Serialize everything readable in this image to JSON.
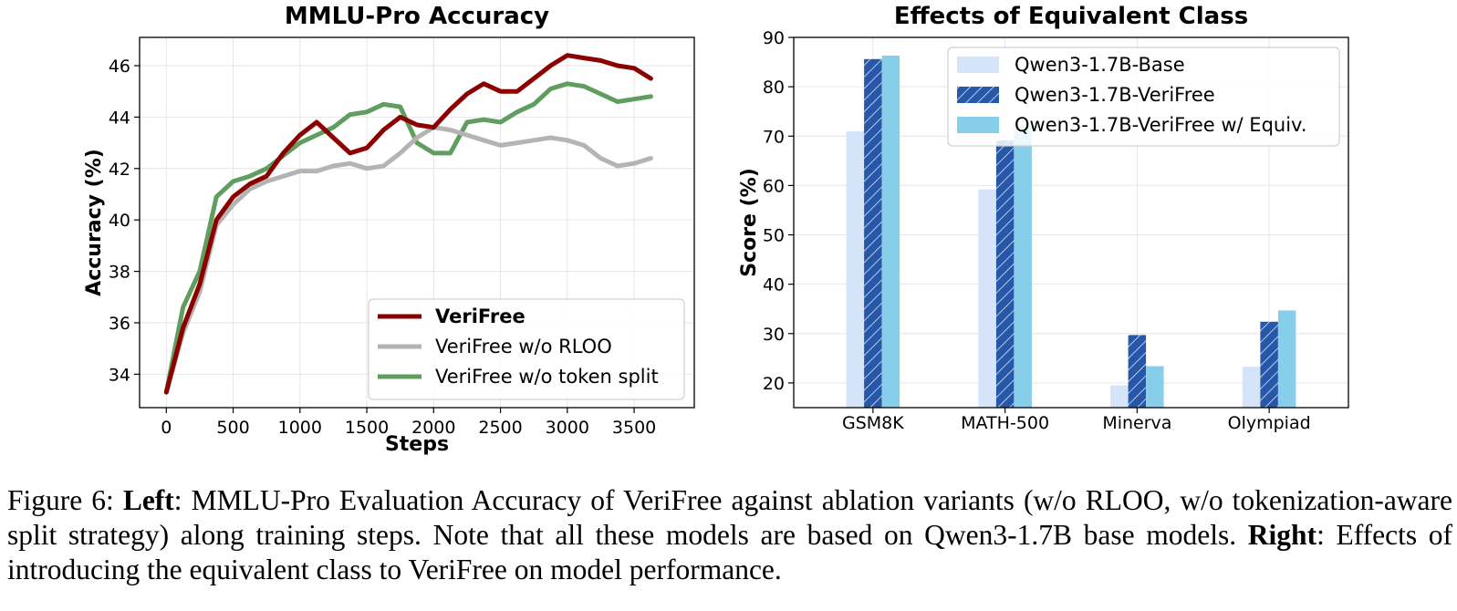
{
  "chart_data": [
    {
      "type": "line",
      "title": "MMLU-Pro Accuracy",
      "xlabel": "Steps",
      "ylabel": "Accuracy (%)",
      "xlim": [
        -200,
        3950
      ],
      "ylim": [
        32.7,
        47.1
      ],
      "xticks": [
        0,
        500,
        1000,
        1500,
        2000,
        2500,
        3000,
        3500
      ],
      "yticks": [
        34,
        36,
        38,
        40,
        42,
        44,
        46
      ],
      "grid": true,
      "legend_position": "lower-right",
      "series": [
        {
          "name": "VeriFree",
          "color": "#8b0000",
          "bold_label": true,
          "x": [
            0,
            125,
            250,
            375,
            500,
            625,
            750,
            875,
            1000,
            1125,
            1250,
            1375,
            1500,
            1625,
            1750,
            1875,
            2000,
            2125,
            2250,
            2375,
            2500,
            2625,
            2750,
            2875,
            3000,
            3125,
            3250,
            3375,
            3500,
            3625
          ],
          "y": [
            33.3,
            35.8,
            37.5,
            40.0,
            40.9,
            41.4,
            41.7,
            42.6,
            43.3,
            43.8,
            43.2,
            42.6,
            42.8,
            43.5,
            44.0,
            43.7,
            43.6,
            44.3,
            44.9,
            45.3,
            45.0,
            45.0,
            45.5,
            46.0,
            46.4,
            46.3,
            46.2,
            46.0,
            45.9,
            45.5
          ]
        },
        {
          "name": "VeriFree w/o RLOO",
          "color": "#b4b4b4",
          "bold_label": false,
          "x": [
            0,
            125,
            250,
            375,
            500,
            625,
            750,
            875,
            1000,
            1125,
            1250,
            1375,
            1500,
            1625,
            1750,
            1875,
            2000,
            2125,
            2250,
            2375,
            2500,
            2625,
            2750,
            2875,
            3000,
            3125,
            3250,
            3375,
            3500,
            3625
          ],
          "y": [
            33.3,
            35.6,
            37.2,
            39.8,
            40.6,
            41.2,
            41.5,
            41.7,
            41.9,
            41.9,
            42.1,
            42.2,
            42.0,
            42.1,
            42.6,
            43.2,
            43.6,
            43.5,
            43.3,
            43.1,
            42.9,
            43.0,
            43.1,
            43.2,
            43.1,
            42.9,
            42.4,
            42.1,
            42.2,
            42.4
          ]
        },
        {
          "name": "VeriFree w/o token split",
          "color": "#5f9e5f",
          "bold_label": false,
          "x": [
            0,
            125,
            250,
            375,
            500,
            625,
            750,
            875,
            1000,
            1125,
            1250,
            1375,
            1500,
            1625,
            1750,
            1875,
            2000,
            2125,
            2250,
            2375,
            2500,
            2625,
            2750,
            2875,
            3000,
            3125,
            3250,
            3375,
            3500,
            3625
          ],
          "y": [
            33.3,
            36.6,
            38.0,
            40.9,
            41.5,
            41.7,
            42.0,
            42.5,
            43.0,
            43.3,
            43.6,
            44.1,
            44.2,
            44.5,
            44.4,
            43.0,
            42.6,
            42.6,
            43.8,
            43.9,
            43.8,
            44.2,
            44.5,
            45.1,
            45.3,
            45.2,
            44.9,
            44.6,
            44.7,
            44.8
          ]
        }
      ]
    },
    {
      "type": "bar",
      "title": "Effects of Equivalent Class",
      "xlabel": "",
      "ylabel": "Score (%)",
      "ylim": [
        15,
        90
      ],
      "yticks": [
        20,
        30,
        40,
        50,
        60,
        70,
        80,
        90
      ],
      "grid": true,
      "legend_position": "upper-right",
      "categories": [
        "GSM8K",
        "MATH-500",
        "Minerva",
        "Olympiad"
      ],
      "series": [
        {
          "name": "Qwen3-1.7B-Base",
          "color": "#d6e4fa",
          "hatch": false,
          "values": [
            71.0,
            59.2,
            19.5,
            23.3
          ]
        },
        {
          "name": "Qwen3-1.7B-VeriFree",
          "color": "#2657a8",
          "hatch": true,
          "values": [
            85.6,
            69.1,
            29.7,
            32.4
          ]
        },
        {
          "name": "Qwen3-1.7B-VeriFree w/ Equiv.",
          "color": "#87ceeb",
          "hatch": false,
          "values": [
            86.3,
            72.0,
            23.4,
            34.7
          ]
        }
      ]
    }
  ],
  "caption": {
    "figure_label": "Figure 6:",
    "left_label": "Left",
    "left_text": ": MMLU-Pro Evaluation Accuracy of VeriFree against ablation variants (w/o RLOO, w/o tokenization-aware split strategy) along training steps. Note that all these models are based on Qwen3-1.7B base models.",
    "right_label": "Right",
    "right_text": ": Effects of introducing the equivalent class to VeriFree on model performance."
  }
}
